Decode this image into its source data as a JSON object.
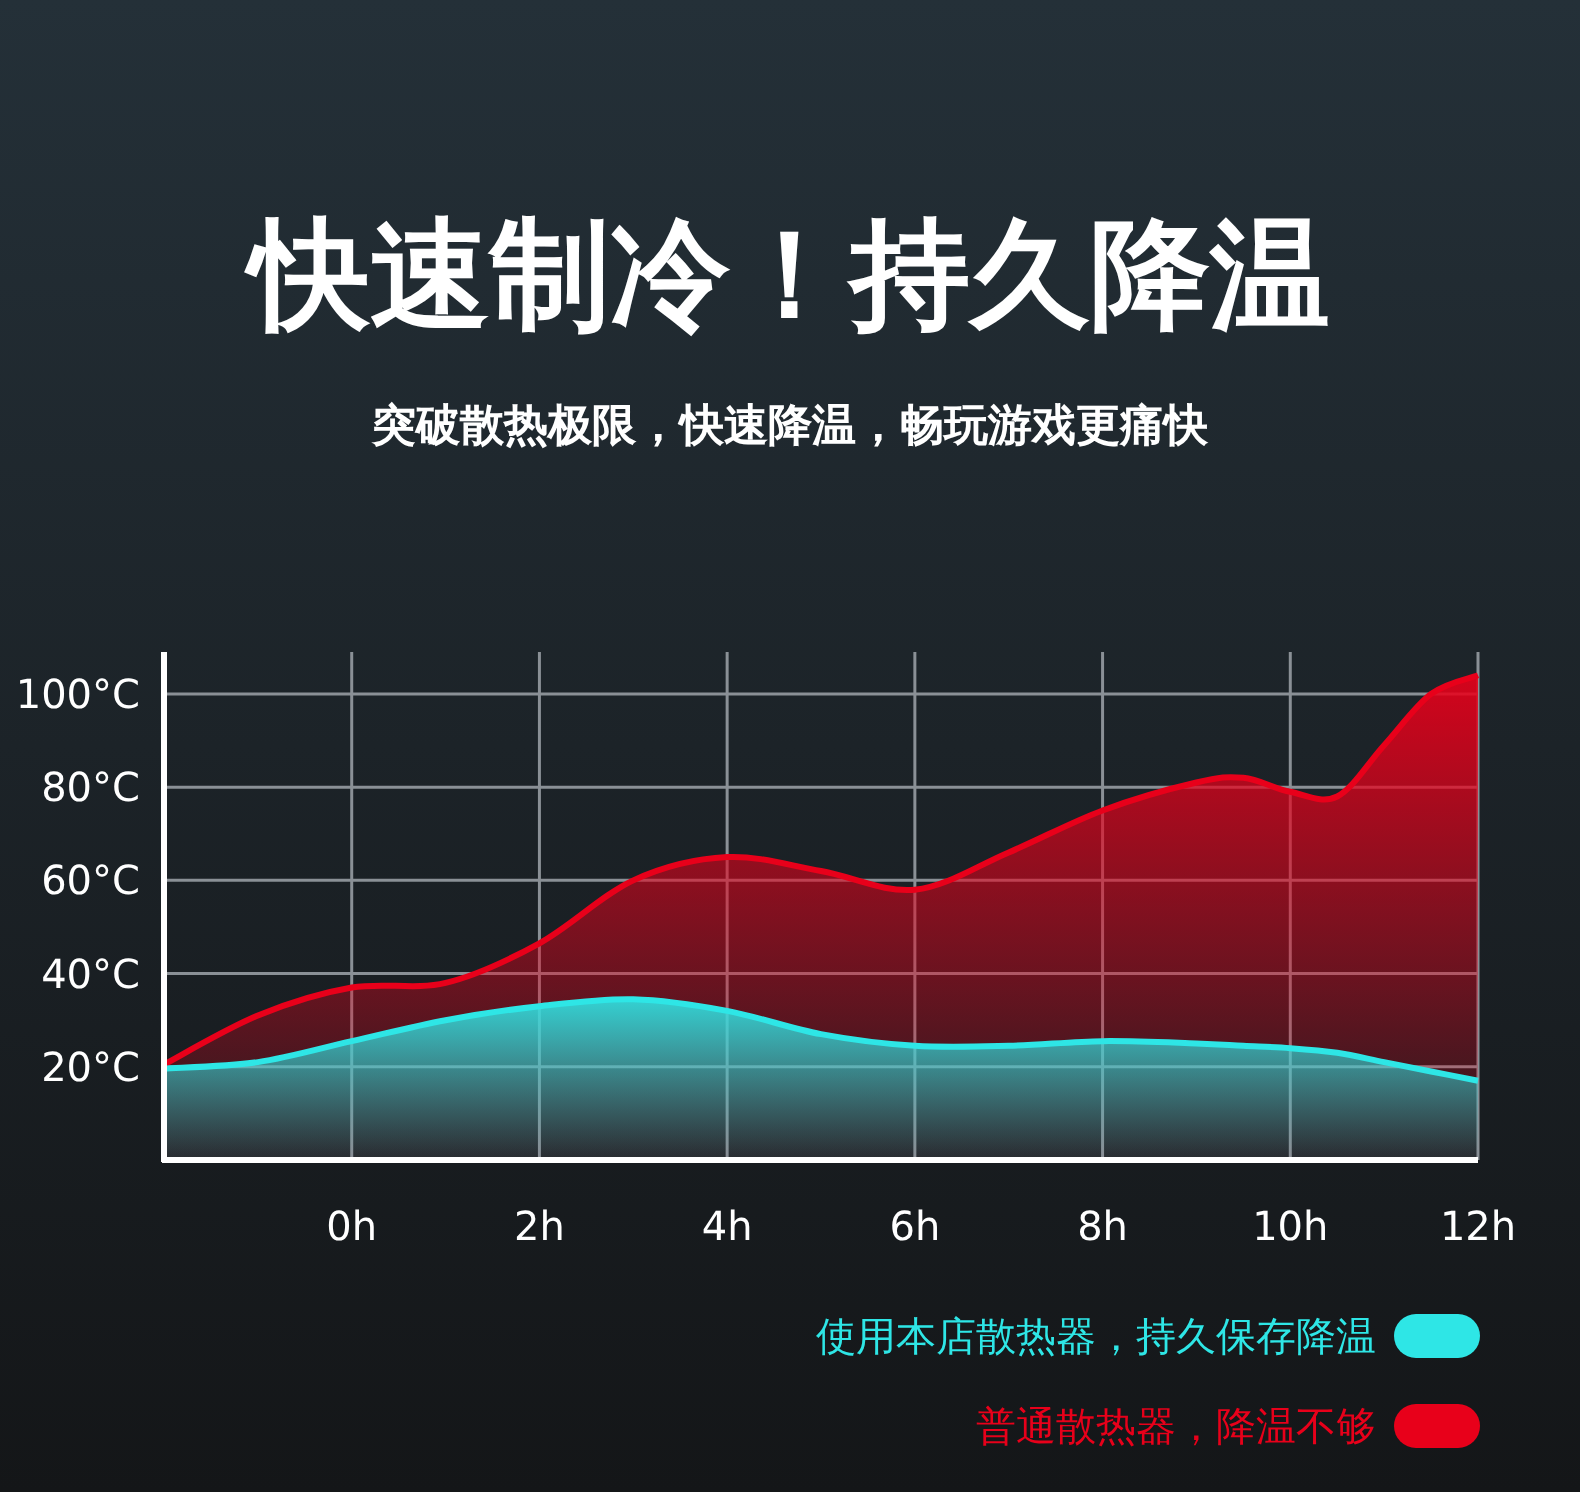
{
  "chart_data": {
    "type": "area",
    "title": "快速制冷！持久降温",
    "subtitle": "突破散热极限，快速降温，畅玩游戏更痛快",
    "x": [
      -2,
      -1,
      0,
      1,
      2,
      3,
      4,
      5,
      6,
      7,
      8,
      9,
      9.5,
      10,
      10.5,
      11,
      11.5,
      12
    ],
    "series": [
      {
        "name": "使用本店散热器，持久保存降温",
        "color": "#2ee6e6",
        "values": [
          19.6,
          21,
          25.5,
          30,
          33,
          34.5,
          32,
          27,
          24.5,
          24.5,
          25.5,
          25,
          24.5,
          24,
          23,
          21,
          19,
          17
        ]
      },
      {
        "name": "普通散热器，降温不够",
        "color": "#e8001a",
        "values": [
          20.5,
          31,
          37,
          38,
          46.5,
          60,
          65,
          62,
          58,
          66,
          75,
          81,
          82,
          79,
          78,
          89,
          100,
          104
        ]
      }
    ],
    "xlim": [
      -2,
      12
    ],
    "ylim": [
      0,
      109
    ],
    "xticks": [
      {
        "value": 0,
        "label": "0h"
      },
      {
        "value": 2,
        "label": "2h"
      },
      {
        "value": 4,
        "label": "4h"
      },
      {
        "value": 6,
        "label": "6h"
      },
      {
        "value": 8,
        "label": "8h"
      },
      {
        "value": 10,
        "label": "10h"
      },
      {
        "value": 12,
        "label": "12h"
      }
    ],
    "yticks": [
      {
        "value": 20,
        "label": "20°C"
      },
      {
        "value": 40,
        "label": "40°C"
      },
      {
        "value": 60,
        "label": "60°C"
      },
      {
        "value": 80,
        "label": "80°C"
      },
      {
        "value": 100,
        "label": "100°C"
      }
    ],
    "grid": true,
    "legend": "bottom right"
  }
}
